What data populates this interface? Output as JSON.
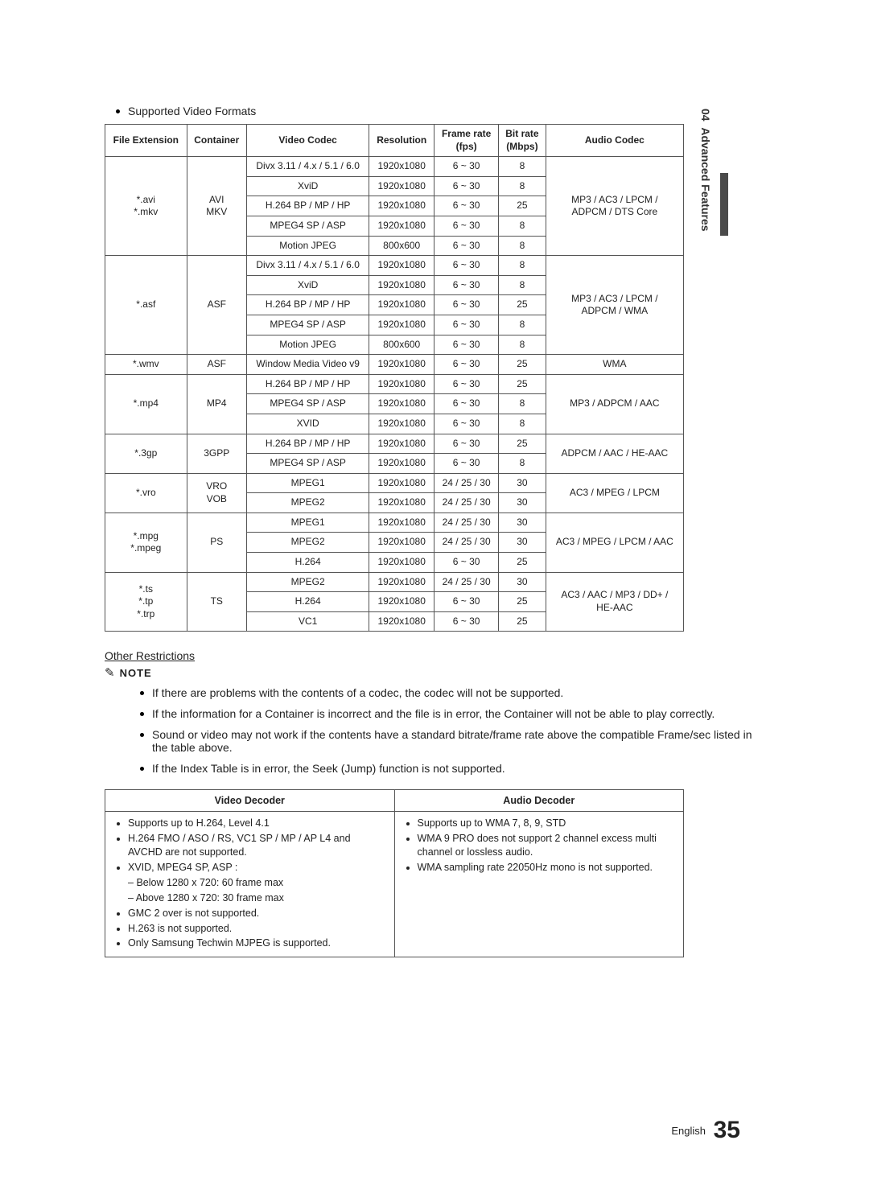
{
  "side": {
    "chapter": "04",
    "title": "Advanced Features"
  },
  "heading": "Supported Video Formats",
  "codec_table": {
    "headers": [
      "File Extension",
      "Container",
      "Video Codec",
      "Resolution",
      "Frame rate\n(fps)",
      "Bit rate\n(Mbps)",
      "Audio Codec"
    ],
    "groups": [
      {
        "ext": "*.avi\n*.mkv",
        "container": "AVI\nMKV",
        "rows": [
          [
            "Divx 3.11 / 4.x / 5.1 / 6.0",
            "1920x1080",
            "6 ~ 30",
            "8"
          ],
          [
            "XviD",
            "1920x1080",
            "6 ~ 30",
            "8"
          ],
          [
            "H.264 BP / MP / HP",
            "1920x1080",
            "6 ~ 30",
            "25"
          ],
          [
            "MPEG4 SP / ASP",
            "1920x1080",
            "6 ~ 30",
            "8"
          ],
          [
            "Motion JPEG",
            "800x600",
            "6 ~ 30",
            "8"
          ]
        ],
        "audio": "MP3 / AC3 / LPCM /\nADPCM / DTS Core"
      },
      {
        "ext": "*.asf",
        "container": "ASF",
        "rows": [
          [
            "Divx 3.11 / 4.x / 5.1 / 6.0",
            "1920x1080",
            "6 ~ 30",
            "8"
          ],
          [
            "XviD",
            "1920x1080",
            "6 ~ 30",
            "8"
          ],
          [
            "H.264 BP / MP / HP",
            "1920x1080",
            "6 ~ 30",
            "25"
          ],
          [
            "MPEG4 SP / ASP",
            "1920x1080",
            "6 ~ 30",
            "8"
          ],
          [
            "Motion JPEG",
            "800x600",
            "6 ~ 30",
            "8"
          ]
        ],
        "audio": "MP3 / AC3 / LPCM /\nADPCM / WMA"
      },
      {
        "ext": "*.wmv",
        "container": "ASF",
        "rows": [
          [
            "Window Media Video v9",
            "1920x1080",
            "6 ~ 30",
            "25"
          ]
        ],
        "audio": "WMA"
      },
      {
        "ext": "*.mp4",
        "container": "MP4",
        "rows": [
          [
            "H.264 BP / MP / HP",
            "1920x1080",
            "6 ~ 30",
            "25"
          ],
          [
            "MPEG4 SP / ASP",
            "1920x1080",
            "6 ~ 30",
            "8"
          ],
          [
            "XVID",
            "1920x1080",
            "6 ~ 30",
            "8"
          ]
        ],
        "audio": "MP3 / ADPCM / AAC"
      },
      {
        "ext": "*.3gp",
        "container": "3GPP",
        "rows": [
          [
            "H.264 BP / MP / HP",
            "1920x1080",
            "6 ~ 30",
            "25"
          ],
          [
            "MPEG4 SP / ASP",
            "1920x1080",
            "6 ~ 30",
            "8"
          ]
        ],
        "audio": "ADPCM / AAC / HE-AAC"
      },
      {
        "ext": "*.vro",
        "container": "VRO\nVOB",
        "rows": [
          [
            "MPEG1",
            "1920x1080",
            "24 / 25 / 30",
            "30"
          ],
          [
            "MPEG2",
            "1920x1080",
            "24 / 25 / 30",
            "30"
          ]
        ],
        "audio": "AC3 / MPEG / LPCM"
      },
      {
        "ext": "*.mpg\n*.mpeg",
        "container": "PS",
        "rows": [
          [
            "MPEG1",
            "1920x1080",
            "24 / 25 / 30",
            "30"
          ],
          [
            "MPEG2",
            "1920x1080",
            "24 / 25 / 30",
            "30"
          ],
          [
            "H.264",
            "1920x1080",
            "6 ~ 30",
            "25"
          ]
        ],
        "audio": "AC3 / MPEG / LPCM / AAC"
      },
      {
        "ext": "*.ts\n*.tp\n*.trp",
        "container": "TS",
        "rows": [
          [
            "MPEG2",
            "1920x1080",
            "24 / 25 / 30",
            "30"
          ],
          [
            "H.264",
            "1920x1080",
            "6 ~ 30",
            "25"
          ],
          [
            "VC1",
            "1920x1080",
            "6 ~ 30",
            "25"
          ]
        ],
        "audio": "AC3 / AAC / MP3 / DD+ /\nHE-AAC"
      }
    ]
  },
  "other_restrictions": {
    "title": "Other Restrictions",
    "note_label": "NOTE",
    "items": [
      "If there are problems with the contents of a codec, the codec will not be supported.",
      "If the information for a Container is incorrect and the file is in error, the Container will not be able to play correctly.",
      "Sound or video may not work if the contents have a standard bitrate/frame rate above the compatible Frame/sec listed in the table above.",
      "If the Index Table is in error, the Seek (Jump) function is not supported."
    ]
  },
  "decoder_table": {
    "headers": [
      "Video Decoder",
      "Audio Decoder"
    ],
    "video": {
      "b1": "Supports up to H.264, Level 4.1",
      "b2": "H.264 FMO / ASO / RS, VC1 SP / MP / AP L4 and AVCHD are not supported.",
      "b3": "XVID, MPEG4 SP, ASP :",
      "b3a": "Below 1280 x 720: 60 frame max",
      "b3b": "Above 1280 x 720: 30 frame max",
      "b4": "GMC 2 over is not supported.",
      "b5": "H.263 is not supported.",
      "b6": "Only Samsung Techwin MJPEG is supported."
    },
    "audio": {
      "b1": "Supports up to WMA 7, 8, 9, STD",
      "b2": "WMA 9 PRO does not support 2 channel excess multi channel or lossless audio.",
      "b3": "WMA sampling rate 22050Hz mono is not supported."
    }
  },
  "footer": {
    "lang": "English",
    "page": "35"
  }
}
